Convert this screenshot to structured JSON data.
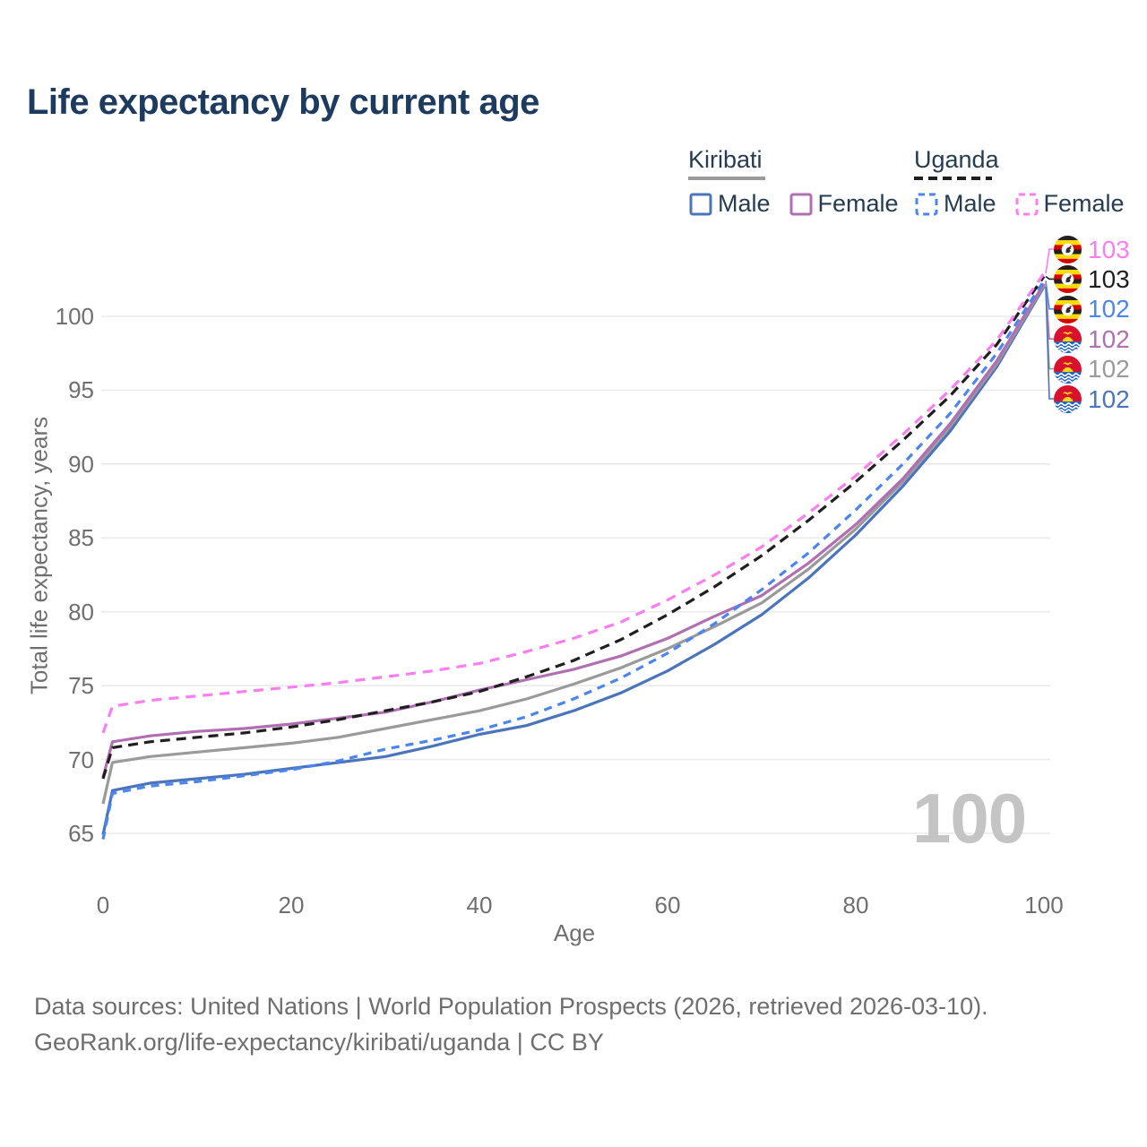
{
  "title": "Life expectancy by current age",
  "watermark": "100",
  "legend": {
    "groups": [
      {
        "label": "Kiribati",
        "line_style": "solid",
        "underline_color": "#9a9a9a",
        "items": [
          {
            "label": "Male",
            "color": "#4a74bc",
            "dashed": false
          },
          {
            "label": "Female",
            "color": "#b06fb3",
            "dashed": false
          }
        ]
      },
      {
        "label": "Uganda",
        "line_style": "dashed",
        "underline_color": "#1f1f1f",
        "items": [
          {
            "label": "Male",
            "color": "#4b86f0",
            "dashed": true
          },
          {
            "label": "Female",
            "color": "#fb7df2",
            "dashed": true
          }
        ]
      }
    ]
  },
  "footer": {
    "line1": "Data sources: United Nations | World Population Prospects (2026, retrieved 2026-03-10).",
    "line2": "GeoRank.org/life-expectancy/kiribati/uganda | CC BY"
  },
  "icons": {
    "uganda_flag": "uganda-flag-icon",
    "kiribati_flag": "kiribati-flag-icon"
  },
  "chart_data": {
    "type": "line",
    "title": "Life expectancy by current age",
    "xlabel": "Age",
    "ylabel": "Total life expectancy, years",
    "xlim": [
      0,
      100
    ],
    "ylim": [
      63,
      104
    ],
    "xticks": [
      0,
      20,
      40,
      60,
      80,
      100
    ],
    "yticks": [
      65,
      70,
      75,
      80,
      85,
      90,
      95,
      100
    ],
    "grid": "horizontal",
    "legend_position": "top-right",
    "x": [
      0,
      1,
      5,
      10,
      15,
      20,
      25,
      30,
      35,
      40,
      45,
      50,
      55,
      60,
      65,
      70,
      75,
      80,
      85,
      90,
      95,
      100
    ],
    "series": [
      {
        "name": "Kiribati Male",
        "country": "Kiribati",
        "sex": "Male",
        "color": "#4a74bc",
        "dash": null,
        "flag": "kiribati",
        "end_label": "102",
        "values": [
          64.9,
          67.9,
          68.4,
          68.7,
          69.0,
          69.4,
          69.8,
          70.2,
          70.9,
          71.7,
          72.3,
          73.3,
          74.5,
          76.0,
          77.8,
          79.8,
          82.3,
          85.2,
          88.5,
          92.2,
          96.6,
          102.0
        ]
      },
      {
        "name": "Kiribati",
        "country": "Kiribati",
        "sex": "Both",
        "color": "#9a9a9a",
        "dash": null,
        "flag": "kiribati",
        "end_label": "102",
        "values": [
          67.0,
          69.8,
          70.2,
          70.5,
          70.8,
          71.1,
          71.5,
          72.1,
          72.7,
          73.3,
          74.1,
          75.1,
          76.2,
          77.5,
          79.0,
          80.6,
          82.9,
          85.6,
          88.8,
          92.5,
          96.8,
          102.1
        ]
      },
      {
        "name": "Kiribati Female",
        "country": "Kiribati",
        "sex": "Female",
        "color": "#b06fb3",
        "dash": null,
        "flag": "kiribati",
        "end_label": "102",
        "values": [
          68.8,
          71.2,
          71.6,
          71.9,
          72.1,
          72.4,
          72.8,
          73.2,
          73.9,
          74.7,
          75.4,
          76.1,
          77.0,
          78.2,
          79.7,
          81.1,
          83.3,
          85.9,
          89.0,
          92.7,
          97.0,
          102.2
        ]
      },
      {
        "name": "Uganda Male",
        "country": "Uganda",
        "sex": "Male",
        "color": "#4b86f0",
        "dash": "9 7",
        "flag": "uganda",
        "end_label": "102",
        "values": [
          64.6,
          67.7,
          68.2,
          68.5,
          68.9,
          69.3,
          69.9,
          70.7,
          71.3,
          72.0,
          72.9,
          74.1,
          75.5,
          77.2,
          79.2,
          81.5,
          84.0,
          86.9,
          90.0,
          93.4,
          97.5,
          102.4
        ]
      },
      {
        "name": "Uganda",
        "country": "Uganda",
        "sex": "Both",
        "color": "#1f1f1f",
        "dash": "11 7",
        "flag": "uganda",
        "end_label": "103",
        "values": [
          68.7,
          70.8,
          71.2,
          71.5,
          71.8,
          72.2,
          72.7,
          73.3,
          73.9,
          74.6,
          75.6,
          76.7,
          78.1,
          79.8,
          81.7,
          83.8,
          86.2,
          88.8,
          91.6,
          94.6,
          98.1,
          102.7
        ]
      },
      {
        "name": "Uganda Female",
        "country": "Uganda",
        "sex": "Female",
        "color": "#fb7df2",
        "dash": "11 8",
        "flag": "uganda",
        "end_label": "103",
        "values": [
          71.8,
          73.6,
          74.0,
          74.3,
          74.6,
          74.9,
          75.2,
          75.6,
          76.0,
          76.5,
          77.3,
          78.2,
          79.3,
          80.8,
          82.5,
          84.4,
          86.7,
          89.2,
          92.0,
          95.0,
          98.4,
          102.9
        ]
      }
    ],
    "end_labels": [
      {
        "value": "103",
        "series": "Uganda Female",
        "flag": "uganda",
        "color": "#fb7df2"
      },
      {
        "value": "103",
        "series": "Uganda",
        "flag": "uganda",
        "color": "#1f1f1f"
      },
      {
        "value": "102",
        "series": "Uganda Male",
        "flag": "uganda",
        "color": "#4b86f0"
      },
      {
        "value": "102",
        "series": "Kiribati Female",
        "flag": "kiribati",
        "color": "#b06fb3"
      },
      {
        "value": "102",
        "series": "Kiribati",
        "flag": "kiribati",
        "color": "#9a9a9a"
      },
      {
        "value": "102",
        "series": "Kiribati Male",
        "flag": "kiribati",
        "color": "#4a74bc"
      }
    ]
  }
}
